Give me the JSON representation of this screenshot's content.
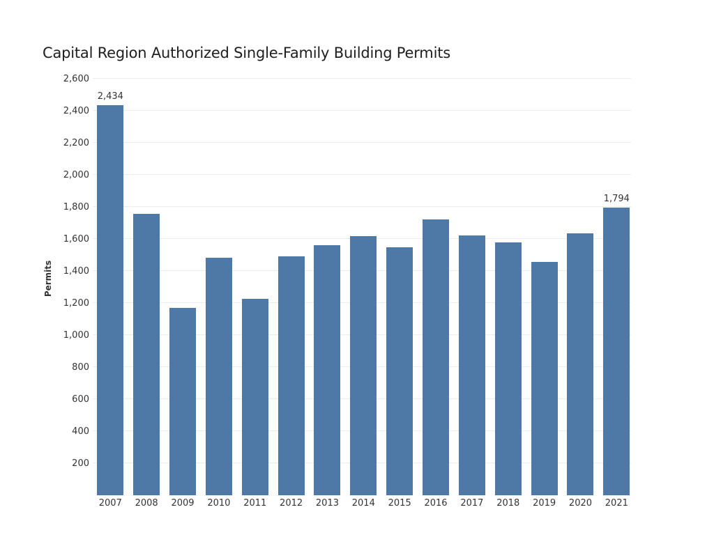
{
  "chart_data": {
    "type": "bar",
    "title": "Capital Region Authorized Single-Family Building Permits",
    "xlabel": "",
    "ylabel": "Permits",
    "ylim": [
      0,
      2600
    ],
    "ytick_interval": 200,
    "grid": "horizontal-light",
    "legend": "none",
    "bar_color": "#4E79A7",
    "gridline_color": "#ececec",
    "text_color": "#333333",
    "categories": [
      "2007",
      "2008",
      "2009",
      "2010",
      "2011",
      "2012",
      "2013",
      "2014",
      "2015",
      "2016",
      "2017",
      "2018",
      "2019",
      "2020",
      "2021"
    ],
    "values": [
      2434,
      1756,
      1168,
      1483,
      1226,
      1493,
      1562,
      1618,
      1549,
      1722,
      1620,
      1578,
      1457,
      1633,
      1794
    ],
    "yticks": [
      {
        "value": 200,
        "label": "200"
      },
      {
        "value": 400,
        "label": "400"
      },
      {
        "value": 600,
        "label": "600"
      },
      {
        "value": 800,
        "label": "800"
      },
      {
        "value": 1000,
        "label": "1,000"
      },
      {
        "value": 1200,
        "label": "1,200"
      },
      {
        "value": 1400,
        "label": "1,400"
      },
      {
        "value": 1600,
        "label": "1,600"
      },
      {
        "value": 1800,
        "label": "1,800"
      },
      {
        "value": 2000,
        "label": "2,000"
      },
      {
        "value": 2200,
        "label": "2,200"
      },
      {
        "value": 2400,
        "label": "2,400"
      },
      {
        "value": 2600,
        "label": "2,600"
      }
    ],
    "annotations": [
      {
        "category": "2007",
        "label": "2,434"
      },
      {
        "category": "2021",
        "label": "1,794"
      }
    ]
  }
}
